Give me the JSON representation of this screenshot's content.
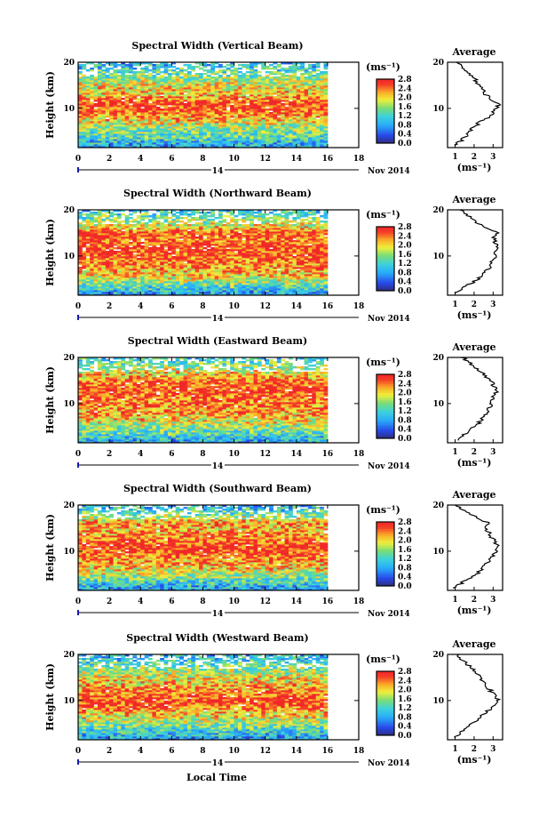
{
  "figure": {
    "xlabel": "Local Time",
    "date_label": "Nov 2014",
    "day_label": "14",
    "height_label": "Height (km)",
    "units": "(ms⁻¹)",
    "avg_title": "Average"
  },
  "chart_data": [
    {
      "type": "heatmap",
      "title": "Spectral Width (Vertical Beam)",
      "xlabel": "Local Time",
      "ylabel": "Height (km)",
      "x_ticks": [
        "0",
        "2",
        "4",
        "6",
        "8",
        "10",
        "12",
        "14",
        "16",
        "18"
      ],
      "y_ticks": [
        "10",
        "20"
      ],
      "xlim": [
        0,
        18
      ],
      "ylim": [
        1.5,
        20
      ],
      "colorbar": {
        "label": "(ms⁻¹)",
        "ticks": [
          "0.0",
          "0.4",
          "0.8",
          "1.2",
          "1.6",
          "2.0",
          "2.4",
          "2.8"
        ],
        "range": [
          0,
          2.8
        ]
      },
      "data_end_hour": 16,
      "average_profile": {
        "title": "Average",
        "xlabel": "(ms⁻¹)",
        "x_ticks": [
          "1",
          "2",
          "3"
        ],
        "y_ticks": [
          "10",
          "20"
        ],
        "height_km": [
          2,
          3,
          4,
          5,
          6,
          7,
          8,
          9,
          10,
          11,
          12,
          13,
          14,
          15,
          16,
          17,
          18,
          19,
          20
        ],
        "width_ms": [
          1.0,
          1.3,
          1.6,
          1.8,
          2.0,
          2.3,
          2.7,
          3.0,
          3.2,
          3.3,
          2.9,
          2.6,
          2.5,
          2.3,
          2.1,
          1.9,
          1.6,
          1.3,
          1.1
        ]
      }
    },
    {
      "type": "heatmap",
      "title": "Spectral Width (Northward Beam)",
      "xlabel": "Local Time",
      "ylabel": "Height (km)",
      "x_ticks": [
        "0",
        "2",
        "4",
        "6",
        "8",
        "10",
        "12",
        "14",
        "16",
        "18"
      ],
      "y_ticks": [
        "10",
        "20"
      ],
      "xlim": [
        0,
        18
      ],
      "ylim": [
        1.5,
        20
      ],
      "colorbar": {
        "label": "(ms⁻¹)",
        "ticks": [
          "0.0",
          "0.4",
          "0.8",
          "1.2",
          "1.6",
          "2.0",
          "2.4",
          "2.8"
        ],
        "range": [
          0,
          2.8
        ]
      },
      "data_end_hour": 16,
      "average_profile": {
        "title": "Average",
        "xlabel": "(ms⁻¹)",
        "x_ticks": [
          "1",
          "2",
          "3"
        ],
        "y_ticks": [
          "10",
          "20"
        ],
        "height_km": [
          2,
          3,
          4,
          5,
          6,
          7,
          8,
          9,
          10,
          11,
          12,
          13,
          14,
          15,
          16,
          17,
          18,
          19,
          20
        ],
        "width_ms": [
          1.0,
          1.4,
          1.8,
          2.2,
          2.5,
          2.7,
          2.9,
          3.0,
          3.1,
          3.2,
          3.2,
          3.1,
          3.0,
          3.2,
          2.6,
          2.2,
          1.9,
          1.6,
          1.3
        ]
      }
    },
    {
      "type": "heatmap",
      "title": "Spectral Width (Eastward Beam)",
      "xlabel": "Local Time",
      "ylabel": "Height (km)",
      "x_ticks": [
        "0",
        "2",
        "4",
        "6",
        "8",
        "10",
        "12",
        "14",
        "16",
        "18"
      ],
      "y_ticks": [
        "10",
        "20"
      ],
      "xlim": [
        0,
        18
      ],
      "ylim": [
        1.5,
        20
      ],
      "colorbar": {
        "label": "(ms⁻¹)",
        "ticks": [
          "0.0",
          "0.4",
          "0.8",
          "1.2",
          "1.6",
          "2.0",
          "2.4",
          "2.8"
        ],
        "range": [
          0,
          2.8
        ]
      },
      "data_end_hour": 16,
      "average_profile": {
        "title": "Average",
        "xlabel": "(ms⁻¹)",
        "x_ticks": [
          "1",
          "2",
          "3"
        ],
        "y_ticks": [
          "10",
          "20"
        ],
        "height_km": [
          2,
          3,
          4,
          5,
          6,
          7,
          8,
          9,
          10,
          11,
          12,
          13,
          14,
          15,
          16,
          17,
          18,
          19,
          20
        ],
        "width_ms": [
          1.1,
          1.4,
          1.7,
          2.0,
          2.3,
          2.5,
          2.7,
          2.8,
          2.9,
          3.0,
          3.1,
          3.2,
          3.0,
          2.9,
          2.6,
          2.3,
          2.0,
          1.7,
          1.4
        ]
      }
    },
    {
      "type": "heatmap",
      "title": "Spectral Width (Southward Beam)",
      "xlabel": "Local Time",
      "ylabel": "Height (km)",
      "x_ticks": [
        "0",
        "2",
        "4",
        "6",
        "8",
        "10",
        "12",
        "14",
        "16",
        "18"
      ],
      "y_ticks": [
        "10",
        "20"
      ],
      "xlim": [
        0,
        18
      ],
      "ylim": [
        1.5,
        20
      ],
      "colorbar": {
        "label": "(ms⁻¹)",
        "ticks": [
          "0.0",
          "0.4",
          "0.8",
          "1.2",
          "1.6",
          "2.0",
          "2.4",
          "2.8"
        ],
        "range": [
          0,
          2.8
        ]
      },
      "data_end_hour": 16,
      "average_profile": {
        "title": "Average",
        "xlabel": "(ms⁻¹)",
        "x_ticks": [
          "1",
          "2",
          "3"
        ],
        "y_ticks": [
          "10",
          "20"
        ],
        "height_km": [
          2,
          3,
          4,
          5,
          6,
          7,
          8,
          9,
          10,
          11,
          12,
          13,
          14,
          15,
          16,
          17,
          18,
          19,
          20
        ],
        "width_ms": [
          1.0,
          1.3,
          1.7,
          2.1,
          2.4,
          2.6,
          2.8,
          3.0,
          3.2,
          3.3,
          3.1,
          2.9,
          2.8,
          2.6,
          2.8,
          2.3,
          1.8,
          1.4,
          1.1
        ]
      }
    },
    {
      "type": "heatmap",
      "title": "Spectral Width (Westward Beam)",
      "xlabel": "Local Time",
      "ylabel": "Height (km)",
      "x_ticks": [
        "0",
        "2",
        "4",
        "6",
        "8",
        "10",
        "12",
        "14",
        "16",
        "18"
      ],
      "y_ticks": [
        "10",
        "20"
      ],
      "xlim": [
        0,
        18
      ],
      "ylim": [
        1.5,
        20
      ],
      "colorbar": {
        "label": "(ms⁻¹)",
        "ticks": [
          "0.0",
          "0.4",
          "0.8",
          "1.2",
          "1.6",
          "2.0",
          "2.4",
          "2.8"
        ],
        "range": [
          0,
          2.8
        ]
      },
      "data_end_hour": 16,
      "average_profile": {
        "title": "Average",
        "xlabel": "(ms⁻¹)",
        "x_ticks": [
          "1",
          "2",
          "3"
        ],
        "y_ticks": [
          "10",
          "20"
        ],
        "height_km": [
          2,
          3,
          4,
          5,
          6,
          7,
          8,
          9,
          10,
          11,
          12,
          13,
          14,
          15,
          16,
          17,
          18,
          19,
          20
        ],
        "width_ms": [
          1.0,
          1.3,
          1.6,
          1.9,
          2.2,
          2.5,
          2.8,
          3.1,
          3.3,
          3.1,
          2.9,
          2.7,
          2.5,
          2.3,
          2.1,
          1.9,
          1.6,
          1.3,
          1.1
        ]
      }
    }
  ]
}
